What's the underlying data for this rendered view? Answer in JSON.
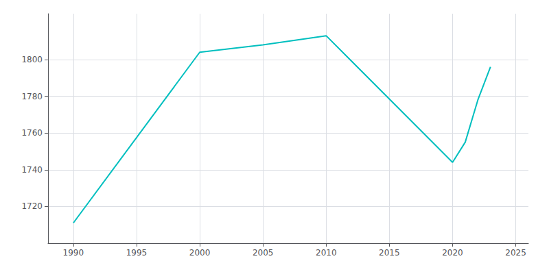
{
  "chart_data": {
    "type": "line",
    "x": [
      1990,
      2000,
      2005,
      2010,
      2020,
      2021,
      2022,
      2023
    ],
    "values": [
      1711,
      1804,
      1808,
      1813,
      1744,
      1755,
      1778,
      1796
    ],
    "color": "#00BFBF",
    "xlim": [
      1988,
      2026
    ],
    "xticks": [
      1990,
      1995,
      2000,
      2005,
      2010,
      2015,
      2020,
      2025
    ],
    "ylim": [
      1700,
      1825
    ],
    "yticks": [
      1720,
      1740,
      1760,
      1780,
      1800
    ],
    "grid": true
  }
}
